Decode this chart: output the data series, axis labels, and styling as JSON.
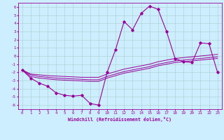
{
  "xlabel": "Windchill (Refroidissement éolien,°C)",
  "x_hours": [
    0,
    1,
    2,
    3,
    4,
    5,
    6,
    7,
    8,
    9,
    10,
    11,
    12,
    13,
    14,
    15,
    16,
    17,
    18,
    19,
    20,
    21,
    22,
    23
  ],
  "main_y": [
    -1.7,
    -2.7,
    -3.3,
    -3.7,
    -4.5,
    -4.8,
    -4.9,
    -4.8,
    -5.8,
    -6.0,
    -2.0,
    0.8,
    4.2,
    3.2,
    5.2,
    6.1,
    5.7,
    3.0,
    -0.3,
    -0.7,
    -0.8,
    1.6,
    1.5,
    -2.0
  ],
  "line_top_y": [
    -1.7,
    -2.2,
    -2.3,
    -2.4,
    -2.45,
    -2.5,
    -2.55,
    -2.6,
    -2.6,
    -2.6,
    -2.2,
    -1.9,
    -1.6,
    -1.4,
    -1.2,
    -1.0,
    -0.7,
    -0.5,
    -0.3,
    -0.2,
    -0.1,
    0.0,
    0.1,
    0.2
  ],
  "line_mid_y": [
    -1.7,
    -2.3,
    -2.5,
    -2.6,
    -2.7,
    -2.75,
    -2.8,
    -2.85,
    -2.9,
    -2.9,
    -2.5,
    -2.2,
    -1.9,
    -1.7,
    -1.5,
    -1.3,
    -1.0,
    -0.8,
    -0.6,
    -0.5,
    -0.4,
    -0.3,
    -0.2,
    -0.1
  ],
  "line_bot_y": [
    -1.7,
    -2.5,
    -2.7,
    -2.8,
    -2.9,
    -2.95,
    -3.0,
    -3.05,
    -3.1,
    -3.1,
    -2.7,
    -2.4,
    -2.1,
    -1.9,
    -1.7,
    -1.5,
    -1.2,
    -1.0,
    -0.8,
    -0.7,
    -0.6,
    -0.5,
    -0.4,
    -0.3
  ],
  "main_color": "#990099",
  "bg_color": "#cceeff",
  "grid_color": "#aacccc",
  "ylim": [
    -6.5,
    6.5
  ],
  "xlim": [
    -0.5,
    23.5
  ],
  "yticks": [
    -6,
    -5,
    -4,
    -3,
    -2,
    -1,
    0,
    1,
    2,
    3,
    4,
    5,
    6
  ]
}
